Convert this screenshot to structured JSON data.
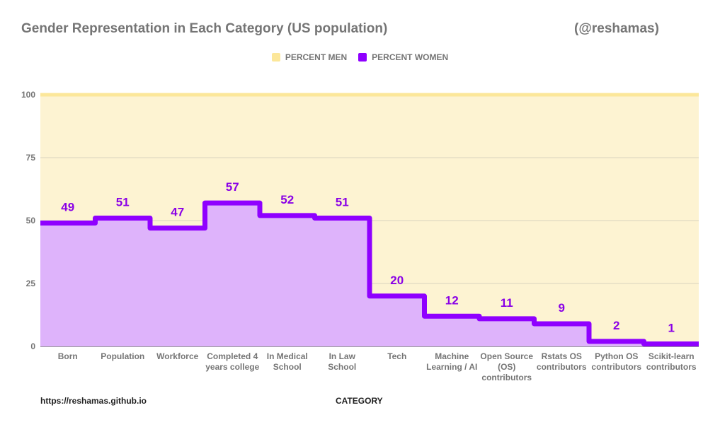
{
  "header": {
    "title": "Gender Representation in Each Category (US population)",
    "handle": "(@reshamas)"
  },
  "footer": {
    "source": "https://reshamas.github.io",
    "x_axis_title": "CATEGORY"
  },
  "colors": {
    "men_fill": "#fdf3d2",
    "men_line": "#fce79a",
    "women_fill": "#deb3fb",
    "women_line": "#8f00ff"
  },
  "chart_data": {
    "type": "area",
    "step": true,
    "title": "Gender Representation in Each Category (US population)",
    "xlabel": "CATEGORY",
    "ylabel": "",
    "ylim": [
      0,
      100
    ],
    "yticks": [
      0,
      25,
      50,
      75,
      100
    ],
    "grid": true,
    "legend_position": "top",
    "stacked": true,
    "categories": [
      [
        "Born"
      ],
      [
        "Population"
      ],
      [
        "Workforce"
      ],
      [
        "Completed 4",
        "years college"
      ],
      [
        "In Medical",
        "School"
      ],
      [
        "In Law",
        "School"
      ],
      [
        "Tech"
      ],
      [
        "Machine",
        "Learning / AI"
      ],
      [
        "Open Source",
        "(OS)",
        "contributors"
      ],
      [
        "Rstats OS",
        "contributors"
      ],
      [
        "Python OS",
        "contributors"
      ],
      [
        "Scikit-learn",
        "contributors"
      ]
    ],
    "series": [
      {
        "name": "PERCENT MEN",
        "values": [
          51,
          49,
          53,
          43,
          48,
          49,
          80,
          88,
          89,
          91,
          98,
          99
        ]
      },
      {
        "name": "PERCENT WOMEN",
        "values": [
          49,
          51,
          47,
          57,
          52,
          51,
          20,
          12,
          11,
          9,
          2,
          1
        ],
        "data_labels": true
      }
    ]
  }
}
